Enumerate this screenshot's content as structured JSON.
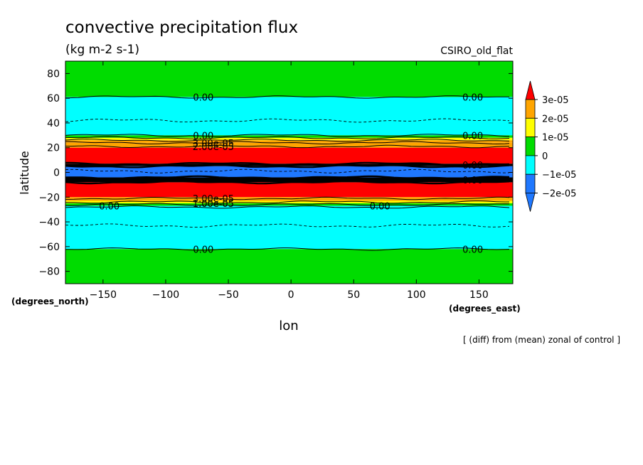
{
  "chart_data": {
    "type": "heatmap",
    "title": "convective precipitation flux",
    "subtitle": "(kg m-2 s-1)",
    "model_label": "CSIRO_old_flat",
    "xlabel": "lon",
    "ylabel": "latitude",
    "x_units_label": "(degrees_east)",
    "y_units_label": "(degrees_north)",
    "footnote": "[ (diff) from (mean) zonal of control ]",
    "xlim": [
      -180,
      177
    ],
    "ylim": [
      -90,
      90
    ],
    "x_ticks": [
      -150,
      -100,
      -50,
      0,
      50,
      100,
      150
    ],
    "y_ticks": [
      -80,
      -60,
      -40,
      -20,
      0,
      20,
      40,
      60,
      80
    ],
    "grid": false,
    "colorbar": {
      "placement": "right",
      "levels": [
        -3e-05,
        -2e-05,
        -1e-05,
        0,
        1e-05,
        2e-05,
        3e-05
      ],
      "colors": [
        "#1f78ff",
        "#2e7df2",
        "#00ffff",
        "#00dc00",
        "#ffff00",
        "#ffa500",
        "#ff0000"
      ],
      "tick_labels": [
        "3e-05",
        "2e-05",
        "1e-05",
        "0",
        "−1e-05",
        "−2e-05"
      ],
      "extend": "both"
    },
    "latitude_bands": [
      {
        "lat_min": 61,
        "lat_max": 90,
        "color": "#00dc00"
      },
      {
        "lat_min": 30,
        "lat_max": 61,
        "color": "#00ffff"
      },
      {
        "lat_min": 28,
        "lat_max": 30,
        "color": "#00dc00"
      },
      {
        "lat_min": 26,
        "lat_max": 28,
        "color": "#ffff00"
      },
      {
        "lat_min": 24,
        "lat_max": 26,
        "color": "#ffa500"
      },
      {
        "lat_min": 20,
        "lat_max": 24,
        "color": "#ffa500"
      },
      {
        "lat_min": 7,
        "lat_max": 20,
        "color": "#ff0000"
      },
      {
        "lat_min": 5,
        "lat_max": 7,
        "color": "#000000"
      },
      {
        "lat_min": -4,
        "lat_max": 5,
        "color": "#1f78ff"
      },
      {
        "lat_min": -8,
        "lat_max": -4,
        "color": "#000000"
      },
      {
        "lat_min": -20,
        "lat_max": -8,
        "color": "#ff0000"
      },
      {
        "lat_min": -23,
        "lat_max": -20,
        "color": "#ffa500"
      },
      {
        "lat_min": -25,
        "lat_max": -23,
        "color": "#ffff00"
      },
      {
        "lat_min": -27,
        "lat_max": -25,
        "color": "#00dc00"
      },
      {
        "lat_min": -62,
        "lat_max": -27,
        "color": "#00ffff"
      },
      {
        "lat_min": -90,
        "lat_max": -62,
        "color": "#00dc00"
      }
    ],
    "solid_contours_lat": [
      61,
      30,
      28,
      26,
      24,
      21,
      7,
      5,
      -4,
      -8,
      -21,
      -24,
      -26,
      -28,
      -62
    ],
    "dashed_contours_lat": [
      42,
      -43,
      1
    ],
    "contour_labels": [
      {
        "text": "0.00",
        "lon": -70,
        "lat": 61
      },
      {
        "text": "0.00",
        "lon": 145,
        "lat": 61
      },
      {
        "text": "0.00",
        "lon": -70,
        "lat": 30
      },
      {
        "text": "0.00",
        "lon": 145,
        "lat": 30
      },
      {
        "text": "0.00",
        "lon": -145,
        "lat": -27
      },
      {
        "text": "0.00",
        "lon": 71,
        "lat": -27
      },
      {
        "text": "0.00",
        "lon": -70,
        "lat": -62
      },
      {
        "text": "0.00",
        "lon": 145,
        "lat": -62
      },
      {
        "text": "3.00e-05",
        "lon": -62,
        "lat": 24
      },
      {
        "text": "2.00e-05",
        "lon": -62,
        "lat": 21
      },
      {
        "text": "0.00",
        "lon": 145,
        "lat": 6
      },
      {
        "text": "0.00",
        "lon": 145,
        "lat": -6
      },
      {
        "text": "3.00e-05",
        "lon": -62,
        "lat": -21
      },
      {
        "text": "1.00e-05",
        "lon": -62,
        "lat": -25
      }
    ]
  }
}
